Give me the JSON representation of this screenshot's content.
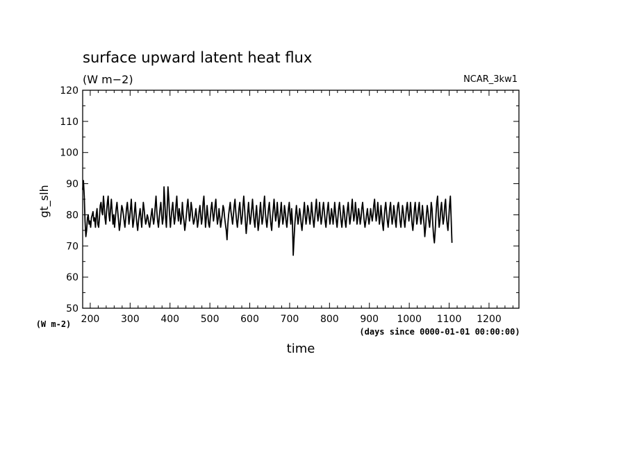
{
  "chart_data": {
    "type": "line",
    "title": "surface upward latent heat flux",
    "subtitle": "(W m−2)",
    "label_right": "NCAR_3kw1",
    "xlabel": "time",
    "x_units": "(days since 0000-01-01 00:00:00)",
    "ylabel": "gt_slh",
    "y_units": "(W m-2)",
    "xlim": [
      181,
      1275
    ],
    "ylim": [
      50,
      120
    ],
    "x_ticks": [
      200,
      300,
      400,
      500,
      600,
      700,
      800,
      900,
      1000,
      1100,
      1200
    ],
    "y_ticks": [
      50,
      60,
      70,
      80,
      90,
      100,
      110,
      120
    ],
    "grid": false,
    "x_start": 181,
    "x_step": 2,
    "series": [
      {
        "values": [
          88,
          91,
          86,
          78,
          73,
          75,
          79,
          80,
          77,
          78,
          76,
          79,
          80,
          81,
          78,
          79,
          76,
          80,
          82,
          77,
          76,
          79,
          83,
          84,
          81,
          80,
          86,
          83,
          79,
          77,
          81,
          84,
          86,
          80,
          78,
          82,
          85,
          81,
          77,
          80,
          76,
          79,
          82,
          84,
          81,
          78,
          75,
          77,
          80,
          83,
          82,
          80,
          78,
          76,
          79,
          82,
          84,
          81,
          77,
          79,
          82,
          85,
          80,
          76,
          78,
          81,
          84,
          80,
          77,
          75,
          78,
          80,
          82,
          79,
          76,
          80,
          84,
          82,
          79,
          77,
          78,
          80,
          79,
          77,
          76,
          78,
          80,
          82,
          79,
          77,
          79,
          83,
          86,
          81,
          78,
          76,
          79,
          82,
          84,
          80,
          77,
          79,
          89,
          84,
          79,
          76,
          82,
          89,
          85,
          80,
          76,
          79,
          82,
          84,
          80,
          77,
          79,
          83,
          86,
          81,
          78,
          82,
          80,
          77,
          79,
          84,
          80,
          78,
          75,
          77,
          80,
          83,
          85,
          81,
          78,
          80,
          84,
          82,
          79,
          77,
          78,
          80,
          82,
          79,
          76,
          78,
          81,
          83,
          80,
          77,
          79,
          84,
          86,
          81,
          76,
          79,
          83,
          80,
          77,
          76,
          79,
          82,
          84,
          81,
          78,
          80,
          83,
          85,
          80,
          77,
          79,
          82,
          79,
          76,
          78,
          80,
          83,
          82,
          79,
          77,
          75,
          72,
          77,
          80,
          82,
          84,
          81,
          79,
          77,
          80,
          83,
          85,
          81,
          78,
          76,
          79,
          82,
          84,
          80,
          77,
          79,
          83,
          86,
          82,
          78,
          74,
          77,
          81,
          84,
          80,
          77,
          79,
          82,
          85,
          81,
          78,
          76,
          80,
          83,
          79,
          75,
          77,
          81,
          84,
          80,
          77,
          79,
          83,
          86,
          81,
          78,
          76,
          79,
          82,
          84,
          80,
          77,
          75,
          79,
          82,
          85,
          81,
          78,
          80,
          84,
          80,
          76,
          78,
          81,
          84,
          80,
          77,
          79,
          83,
          81,
          78,
          76,
          79,
          82,
          84,
          80,
          77,
          82,
          78,
          67,
          72,
          77,
          80,
          83,
          80,
          77,
          79,
          82,
          80,
          77,
          75,
          78,
          81,
          84,
          80,
          77,
          79,
          83,
          82,
          79,
          77,
          80,
          84,
          81,
          78,
          76,
          79,
          82,
          85,
          81,
          78,
          80,
          84,
          80,
          77,
          79,
          82,
          84,
          81,
          78,
          76,
          79,
          82,
          84,
          80,
          77,
          79,
          82,
          80,
          77,
          80,
          84,
          81,
          78,
          76,
          79,
          82,
          84,
          81,
          78,
          76,
          79,
          83,
          81,
          78,
          76,
          79,
          82,
          84,
          80,
          77,
          79,
          82,
          85,
          81,
          78,
          80,
          84,
          81,
          77,
          79,
          82,
          80,
          77,
          79,
          82,
          84,
          81,
          78,
          76,
          78,
          80,
          82,
          79,
          77,
          79,
          82,
          80,
          78,
          80,
          83,
          85,
          81,
          78,
          80,
          84,
          81,
          77,
          79,
          83,
          80,
          77,
          75,
          79,
          82,
          84,
          81,
          78,
          76,
          79,
          82,
          84,
          80,
          77,
          79,
          83,
          81,
          78,
          76,
          80,
          83,
          84,
          81,
          78,
          76,
          79,
          83,
          81,
          78,
          76,
          79,
          82,
          84,
          81,
          78,
          80,
          84,
          81,
          77,
          75,
          78,
          82,
          84,
          80,
          77,
          79,
          82,
          84,
          80,
          77,
          79,
          83,
          80,
          77,
          73,
          76,
          80,
          83,
          81,
          78,
          76,
          79,
          84,
          82,
          77,
          73,
          71,
          75,
          80,
          84,
          86,
          80,
          76,
          78,
          82,
          84,
          80,
          77,
          79,
          83,
          85,
          80,
          77,
          75,
          79,
          83,
          86,
          79,
          71
        ]
      }
    ]
  }
}
